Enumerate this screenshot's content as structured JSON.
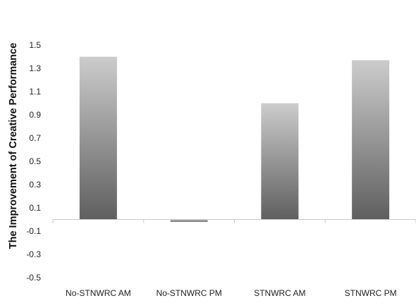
{
  "chart_data": {
    "type": "bar",
    "title": "",
    "xlabel": "",
    "ylabel": "The Improvement of Creative Performance",
    "categories": [
      "No-STNWRC AM",
      "No-STNWRC PM",
      "STNWRC AM",
      "STNWRC PM"
    ],
    "values": [
      1.4,
      -0.02,
      1.0,
      1.37
    ],
    "ylim": [
      -0.5,
      1.5
    ],
    "yticks": [
      -0.5,
      -0.3,
      -0.1,
      0.1,
      0.3,
      0.5,
      0.7,
      0.9,
      1.1,
      1.3,
      1.5
    ],
    "grid": false,
    "legend": "none",
    "colors": {
      "bar_light": "#cccccc",
      "bar_dark": "#5f5f5f",
      "axis": "#c8c8c8",
      "text": "#222222"
    }
  }
}
